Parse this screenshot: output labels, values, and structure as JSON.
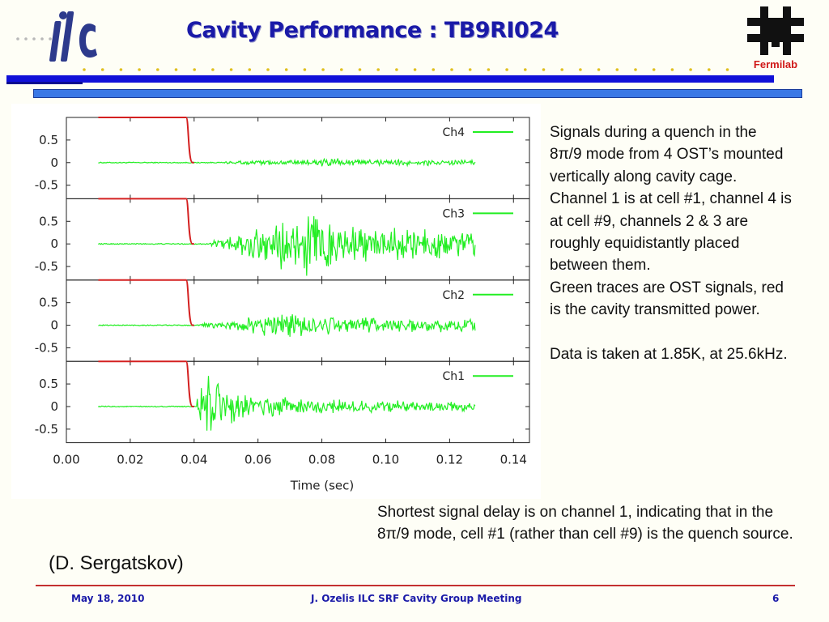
{
  "slide": {
    "title": "Cavity Performance : TB9RI024",
    "logos": {
      "left": "ilc-logo",
      "right": "fermilab-logo",
      "right_label": "Fermilab"
    },
    "description": "Signals during a quench in the 8π/9 mode from 4 OST’s mounted vertically along cavity cage. Channel 1 is at cell #1, channel 4 is at cell #9, channels 2 & 3 are roughly equidistantly placed between them.\nGreen traces are OST signals, red is the cavity transmitted power.\n\nData is taken at 1.85K, at 25.6kHz.",
    "conclusion": "Shortest signal delay is on channel 1, indicating that in the 8π/9 mode, cell #1 (rather than cell #9) is the quench source.",
    "credit": "(D. Sergatskov)",
    "footer": {
      "date": "May 18,  2010",
      "meeting": "J. Ozelis  ILC SRF Cavity Group Meeting",
      "page": "6"
    },
    "colors": {
      "title": "#1a1aa8",
      "bar": "#1010d8",
      "accent_bar": "#3a78e6",
      "footer_line": "#c43030"
    }
  },
  "chart_data": {
    "type": "line",
    "title": "",
    "xlabel": "Time (sec)",
    "ylabel": "",
    "xlim": [
      0.0,
      0.145
    ],
    "ylim": [
      -0.8,
      1.0
    ],
    "x_ticks": [
      0.0,
      0.02,
      0.04,
      0.06,
      0.08,
      0.1,
      0.12,
      0.14
    ],
    "x_tick_labels": [
      "0.00",
      "0.02",
      "0.04",
      "0.06",
      "0.08",
      "0.10",
      "0.12",
      "0.14"
    ],
    "y_ticks": [
      0.5,
      0,
      -0.5
    ],
    "y_tick_labels": [
      "0.5",
      "0",
      "-0.5"
    ],
    "grid": false,
    "legend": "top-right in each panel",
    "colors": {
      "ost": "#22ee22",
      "power": "#d42020"
    },
    "panels": [
      {
        "name": "Ch4",
        "power": {
          "level": 1.0,
          "drop_start": 0.0375,
          "drop_end": 0.0395,
          "start": 0.01,
          "end": 0.04
        },
        "ost": {
          "start": 0.01,
          "end": 0.128,
          "onset": 0.05,
          "envelope": [
            [
              0.05,
              0.03
            ],
            [
              0.06,
              0.06
            ],
            [
              0.07,
              0.06
            ],
            [
              0.08,
              0.12
            ],
            [
              0.085,
              0.1
            ],
            [
              0.095,
              0.08
            ],
            [
              0.11,
              0.08
            ],
            [
              0.128,
              0.06
            ]
          ]
        }
      },
      {
        "name": "Ch3",
        "power": {
          "level": 1.0,
          "drop_start": 0.0375,
          "drop_end": 0.0395,
          "start": 0.01,
          "end": 0.04
        },
        "ost": {
          "start": 0.01,
          "end": 0.128,
          "onset": 0.045,
          "envelope": [
            [
              0.045,
              0.05
            ],
            [
              0.055,
              0.3
            ],
            [
              0.065,
              0.5
            ],
            [
              0.072,
              0.95
            ],
            [
              0.08,
              0.6
            ],
            [
              0.095,
              0.4
            ],
            [
              0.11,
              0.35
            ],
            [
              0.128,
              0.3
            ]
          ]
        }
      },
      {
        "name": "Ch2",
        "power": {
          "level": 1.0,
          "drop_start": 0.0375,
          "drop_end": 0.0395,
          "start": 0.01,
          "end": 0.04
        },
        "ost": {
          "start": 0.01,
          "end": 0.128,
          "onset": 0.042,
          "envelope": [
            [
              0.042,
              0.05
            ],
            [
              0.055,
              0.15
            ],
            [
              0.068,
              0.35
            ],
            [
              0.075,
              0.25
            ],
            [
              0.09,
              0.2
            ],
            [
              0.11,
              0.18
            ],
            [
              0.128,
              0.15
            ]
          ]
        }
      },
      {
        "name": "Ch1",
        "power": {
          "level": 1.0,
          "drop_start": 0.0375,
          "drop_end": 0.0395,
          "start": 0.01,
          "end": 0.04
        },
        "ost": {
          "start": 0.01,
          "end": 0.128,
          "onset": 0.041,
          "envelope": [
            [
              0.041,
              0.3
            ],
            [
              0.044,
              0.85
            ],
            [
              0.05,
              0.45
            ],
            [
              0.06,
              0.25
            ],
            [
              0.08,
              0.18
            ],
            [
              0.1,
              0.15
            ],
            [
              0.128,
              0.12
            ]
          ]
        }
      }
    ]
  }
}
